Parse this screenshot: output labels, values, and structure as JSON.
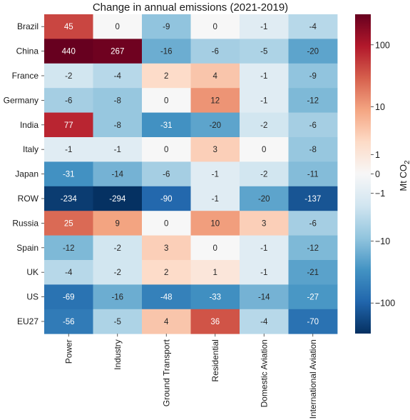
{
  "chart_data": {
    "type": "heatmap",
    "title": "Change in annual emissions (2021-2019)",
    "rows": [
      "Brazil",
      "China",
      "France",
      "Germany",
      "India",
      "Italy",
      "Japan",
      "ROW",
      "Russia",
      "Spain",
      "UK",
      "US",
      "EU27"
    ],
    "columns": [
      "Power",
      "Industry",
      "Ground Transport",
      "Residential",
      "Domestic Aviation",
      "International Aviation"
    ],
    "values": [
      [
        45,
        0,
        -9,
        0,
        -1,
        -4
      ],
      [
        440,
        267,
        -16,
        -6,
        -5,
        -20
      ],
      [
        -2,
        -4,
        2,
        4,
        -1,
        -9
      ],
      [
        -6,
        -8,
        0,
        12,
        -1,
        -12
      ],
      [
        77,
        -8,
        -31,
        -20,
        -2,
        -6
      ],
      [
        -1,
        -1,
        0,
        3,
        0,
        -8
      ],
      [
        -31,
        -14,
        -6,
        -1,
        -2,
        -11
      ],
      [
        -234,
        -294,
        -90,
        -1,
        -20,
        -137
      ],
      [
        25,
        9,
        0,
        10,
        3,
        -6
      ],
      [
        -12,
        -2,
        3,
        0,
        -1,
        -12
      ],
      [
        -4,
        -2,
        2,
        1,
        -1,
        -21
      ],
      [
        -69,
        -16,
        -48,
        -33,
        -14,
        -27
      ],
      [
        -56,
        -5,
        4,
        36,
        -4,
        -70
      ]
    ],
    "colorbar": {
      "label": "Mt CO",
      "label_subscript": "2",
      "scale": "symlog",
      "range": [
        -300,
        300
      ],
      "ticks": [
        100,
        10,
        1,
        0,
        -1,
        -10,
        -100
      ],
      "tick_labels": [
        "100",
        "10",
        "1",
        "0",
        "−1",
        "−10",
        "−100"
      ],
      "colormap": "RdBu_r"
    }
  }
}
